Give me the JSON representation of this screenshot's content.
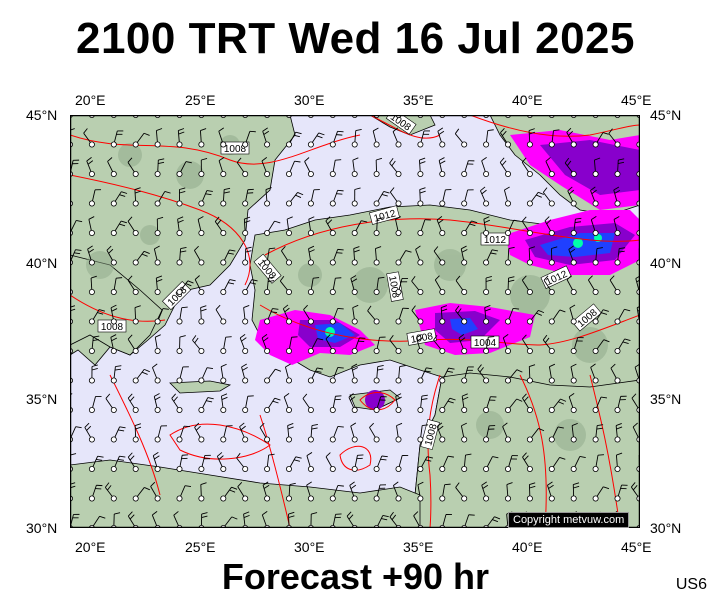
{
  "title": "2100 TRT Wed 16 Jul 2025",
  "footer": "Forecast +90 hr",
  "model_code": "US6",
  "copyright": "Copyright metvuw.com",
  "axes": {
    "lon_labels": [
      "20°E",
      "25°E",
      "30°E",
      "35°E",
      "40°E",
      "45°E"
    ],
    "lat_labels": [
      "45°N",
      "40°N",
      "35°N",
      "30°N"
    ]
  },
  "isobar_labels": [
    "1008",
    "1008",
    "1012",
    "1012",
    "1012",
    "1008",
    "1008",
    "1008",
    "1008",
    "1004",
    "1008",
    "1008",
    "1008"
  ],
  "colors": {
    "sea": "#e6e6fa",
    "land": "#b9cfb0",
    "isobar": "#ff0000",
    "rain_light": "#ff00ff",
    "rain_medium": "#8800cc",
    "rain_heavy": "#2040ff",
    "rain_peak": "#00ffaa"
  }
}
